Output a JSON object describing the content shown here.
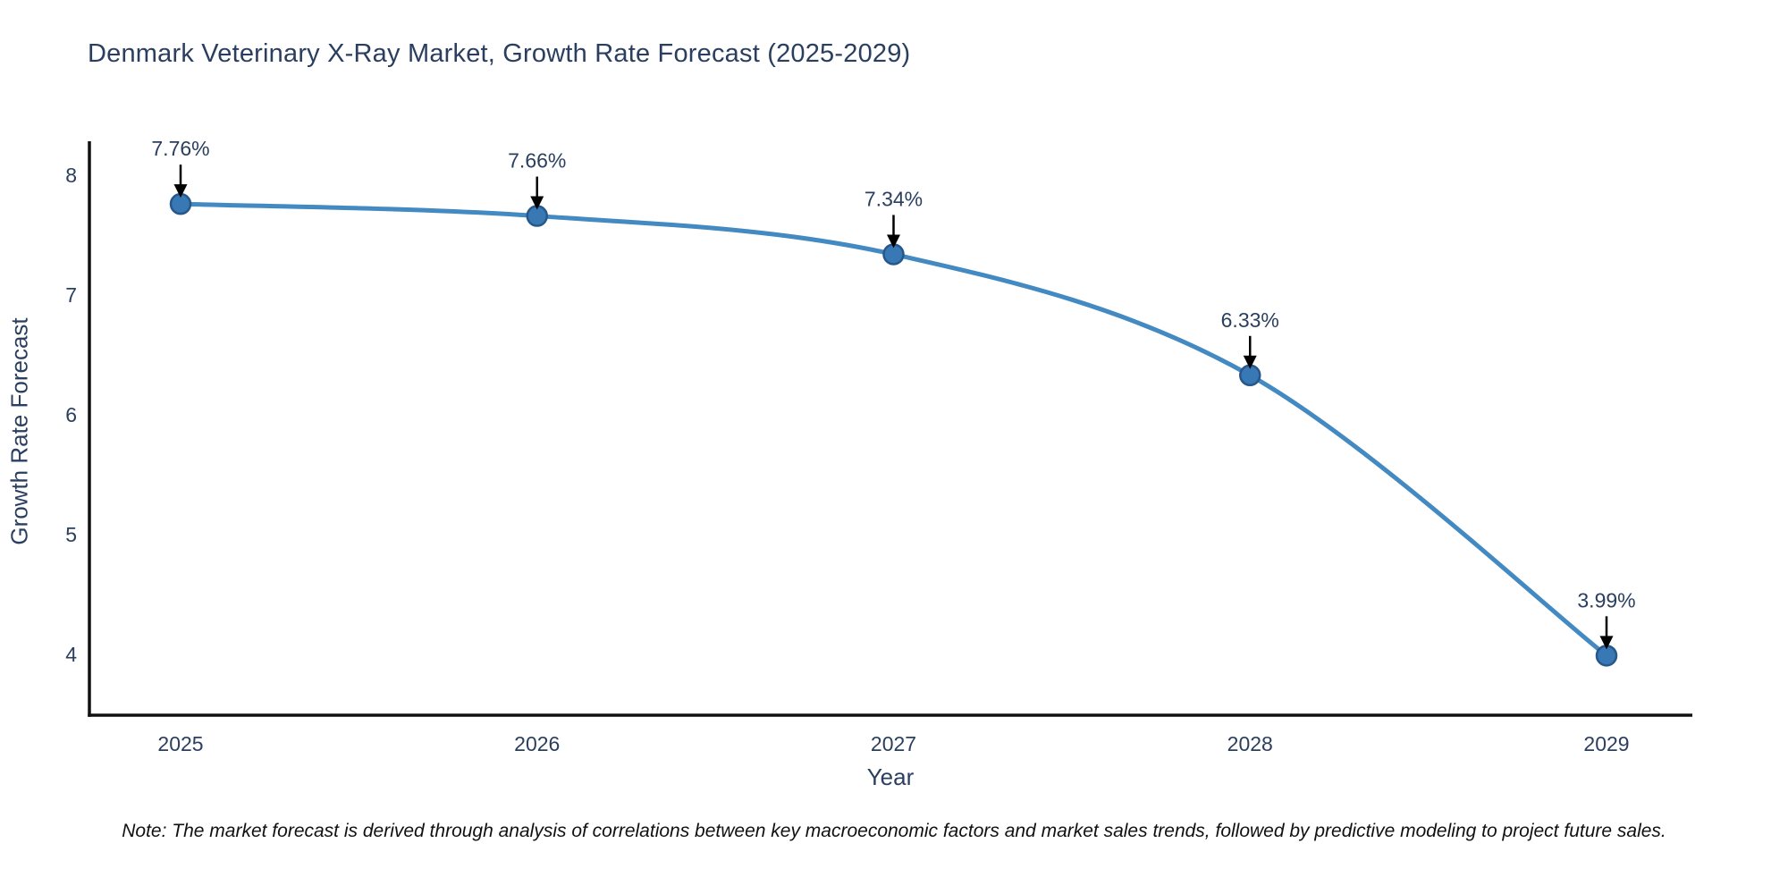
{
  "title": "Denmark Veterinary X-Ray Market, Growth Rate Forecast (2025-2029)",
  "note": "Note: The market forecast is derived through analysis of correlations between key macroeconomic factors and market sales trends, followed by predictive modeling to project future sales.",
  "chart_data": {
    "type": "line",
    "title": "Denmark Veterinary X-Ray Market, Growth Rate Forecast (2025-2029)",
    "x": [
      2025,
      2026,
      2027,
      2028,
      2029
    ],
    "values": [
      7.76,
      7.66,
      7.34,
      6.33,
      3.99
    ],
    "point_labels": [
      "7.76%",
      "7.66%",
      "7.34%",
      "6.33%",
      "3.99%"
    ],
    "xlabel": "Year",
    "ylabel": "Growth Rate Forecast",
    "yticks": [
      8,
      7,
      6,
      5,
      4
    ],
    "ylim": [
      3.55,
      8.3
    ],
    "xtick_labels": [
      "2025",
      "2026",
      "2027",
      "2028",
      "2029"
    ],
    "grid": false,
    "legend": "none",
    "curve": "spline",
    "line_color": "#4389c2",
    "marker_color": "#3878b4",
    "marker_edge_color": "#28588a",
    "axis_color": "#111111",
    "text_color": "#2a3f5f",
    "annotation_arrow_color": "#000000"
  }
}
